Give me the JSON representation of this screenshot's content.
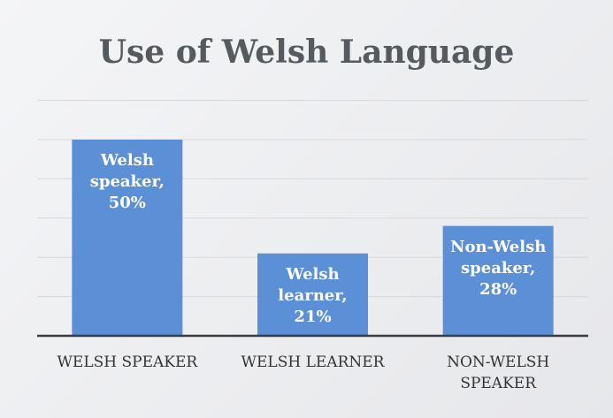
{
  "chart_data": {
    "type": "bar",
    "title": "Use of Welsh Language",
    "categories": [
      "WELSH SPEAKER",
      "WELSH LEARNER",
      "NON-WELSH SPEAKER"
    ],
    "values": [
      50,
      21,
      28
    ],
    "value_labels": [
      "Welsh speaker, 50%",
      "Welsh learner, 21%",
      "Non-Welsh speaker, 28%"
    ],
    "color": "#5b8fd6",
    "ylim": [
      0,
      60
    ],
    "yticks": [
      0,
      10,
      20,
      30,
      40,
      50,
      60
    ],
    "grid": true
  }
}
